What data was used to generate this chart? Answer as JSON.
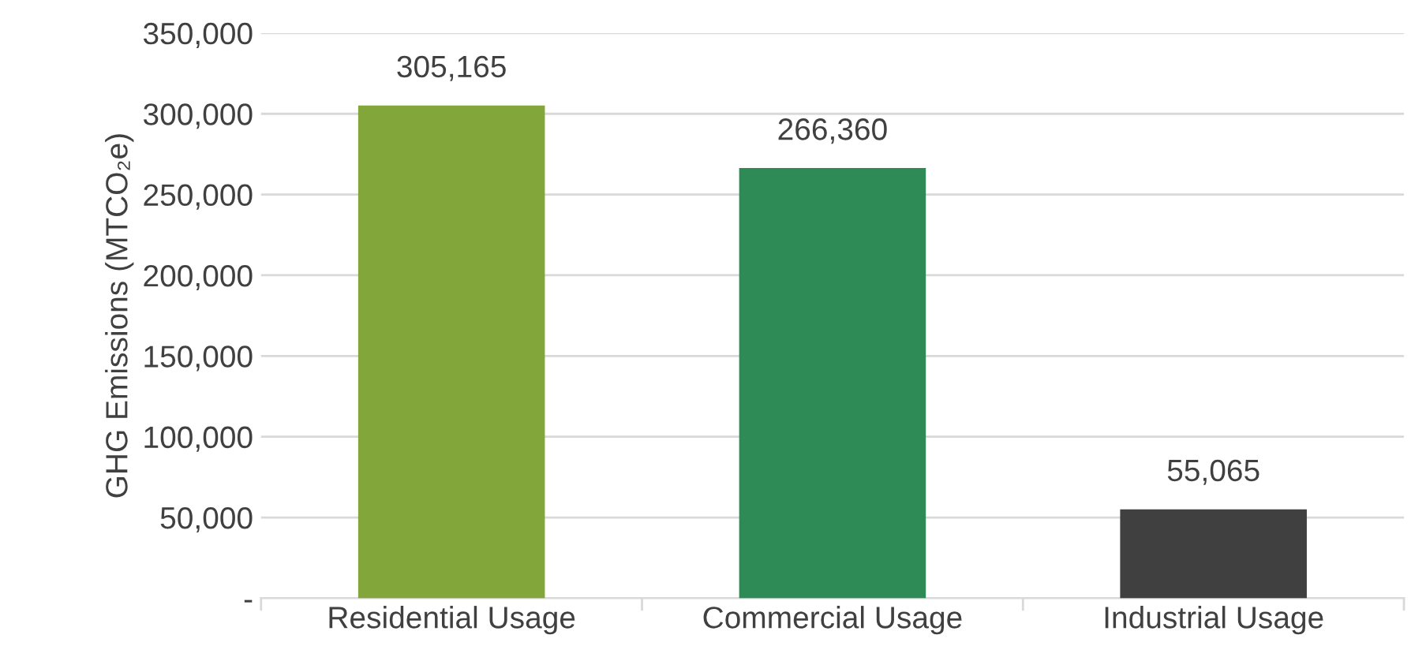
{
  "chart_data": {
    "type": "bar",
    "categories": [
      "Residential Usage",
      "Commercial Usage",
      "Industrial Usage"
    ],
    "values": [
      305165,
      266360,
      55065
    ],
    "colors": [
      "#82a63a",
      "#2e8b55",
      "#404040"
    ],
    "value_labels": [
      "305,165",
      "266,360",
      "55,065"
    ],
    "ylabel": "GHG Emissions (MTCO₂e)",
    "ylim": [
      0,
      350000
    ],
    "yticks": [
      {
        "value": 0,
        "label": "-"
      },
      {
        "value": 50000,
        "label": "50,000"
      },
      {
        "value": 100000,
        "label": "100,000"
      },
      {
        "value": 150000,
        "label": "150,000"
      },
      {
        "value": 200000,
        "label": "200,000"
      },
      {
        "value": 250000,
        "label": "250,000"
      },
      {
        "value": 300000,
        "label": "300,000"
      },
      {
        "value": 350000,
        "label": "350,000"
      }
    ],
    "grid": "y",
    "legend": false
  }
}
